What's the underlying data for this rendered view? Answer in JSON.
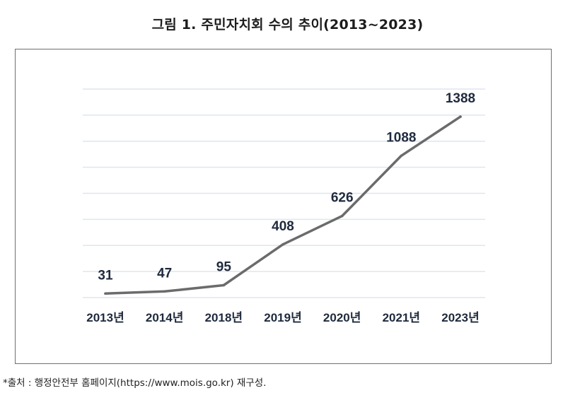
{
  "title": "그림 1. 주민자치회 수의 추이(2013~2023)",
  "source_note": "*출처 : 행정안전부 홈페이지(https://www.mois.go.kr) 재구성.",
  "chart_data": {
    "type": "line",
    "title": "그림 1. 주민자치회 수의 추이(2013~2023)",
    "xlabel": "",
    "ylabel": "",
    "categories": [
      "2013년",
      "2014년",
      "2018년",
      "2019년",
      "2020년",
      "2021년",
      "2023년"
    ],
    "series": [
      {
        "name": "주민자치회 수",
        "values": [
          31,
          47,
          95,
          408,
          626,
          1088,
          1388
        ]
      }
    ],
    "data_labels": [
      "31",
      "47",
      "95",
      "408",
      "626",
      "1088",
      "1388"
    ],
    "ylim": [
      0,
      1600
    ],
    "grid": true,
    "legend": "none",
    "line_color": "#6b6b6b",
    "grid_color": "#dde6f0",
    "label_color": "#1f2a3d"
  }
}
